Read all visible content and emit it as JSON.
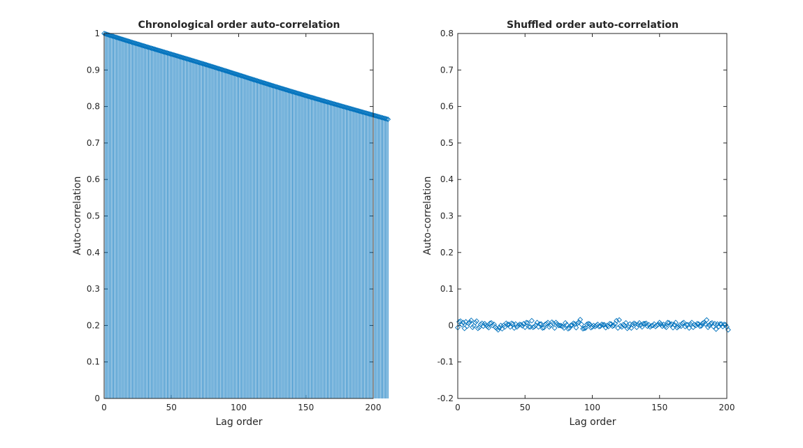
{
  "colors": {
    "background": "#ffffff",
    "axis": "#262626",
    "series": "#0072bd"
  },
  "chart_data": [
    {
      "type": "stem",
      "title": "Chronological order auto-correlation",
      "xlabel": "Lag order",
      "ylabel": "Auto-correlation",
      "xlim": [
        0,
        200
      ],
      "ylim": [
        0,
        1
      ],
      "xticks": [
        0,
        50,
        100,
        150,
        200
      ],
      "xtick_labels": [
        "0",
        "50",
        "100",
        "150",
        "200"
      ],
      "yticks": [
        0,
        0.1,
        0.2,
        0.3,
        0.4,
        0.5,
        0.6,
        0.7,
        0.8,
        0.9,
        1
      ],
      "ytick_labels": [
        "0",
        "0.1",
        "0.2",
        "0.3",
        "0.4",
        "0.5",
        "0.6",
        "0.7",
        "0.8",
        "0.9",
        "1"
      ],
      "marker": "diamond",
      "grid": false,
      "series": [
        {
          "x_start": 0,
          "x_step": 1,
          "values": [
            1.0,
            0.9988,
            0.9976,
            0.9964,
            0.9952,
            0.994,
            0.9929,
            0.9917,
            0.9905,
            0.9894,
            0.9882,
            0.987,
            0.9859,
            0.9847,
            0.9836,
            0.9824,
            0.9813,
            0.9801,
            0.979,
            0.9778,
            0.9767,
            0.9755,
            0.9744,
            0.9733,
            0.9721,
            0.971,
            0.9699,
            0.9687,
            0.9676,
            0.9665,
            0.9654,
            0.9642,
            0.9631,
            0.962,
            0.9609,
            0.9598,
            0.9587,
            0.9576,
            0.9564,
            0.9553,
            0.9542,
            0.9531,
            0.952,
            0.9509,
            0.9498,
            0.9487,
            0.9476,
            0.9465,
            0.9454,
            0.9443,
            0.9432,
            0.9421,
            0.941,
            0.9399,
            0.9388,
            0.9377,
            0.9366,
            0.9354,
            0.9343,
            0.9332,
            0.9321,
            0.931,
            0.9299,
            0.9288,
            0.9277,
            0.9266,
            0.9254,
            0.9243,
            0.9232,
            0.9221,
            0.921,
            0.9198,
            0.9187,
            0.9176,
            0.9165,
            0.9153,
            0.9142,
            0.9131,
            0.9119,
            0.9108,
            0.9096,
            0.9085,
            0.9073,
            0.9062,
            0.905,
            0.9039,
            0.9027,
            0.9016,
            0.9004,
            0.8992,
            0.8981,
            0.8969,
            0.8958,
            0.8946,
            0.8934,
            0.8923,
            0.8911,
            0.8899,
            0.8888,
            0.8876,
            0.8864,
            0.8852,
            0.8841,
            0.8829,
            0.8817,
            0.8806,
            0.8794,
            0.8782,
            0.877,
            0.8759,
            0.8747,
            0.8735,
            0.8724,
            0.8712,
            0.87,
            0.8689,
            0.8677,
            0.8666,
            0.8654,
            0.8642,
            0.8631,
            0.8619,
            0.8608,
            0.8596,
            0.8585,
            0.8573,
            0.8562,
            0.855,
            0.8539,
            0.8528,
            0.8516,
            0.8505,
            0.8494,
            0.8483,
            0.8471,
            0.846,
            0.8449,
            0.8438,
            0.8426,
            0.8415,
            0.8404,
            0.8393,
            0.8382,
            0.8371,
            0.836,
            0.8349,
            0.8338,
            0.8327,
            0.8316,
            0.8305,
            0.8294,
            0.8283,
            0.8272,
            0.8261,
            0.825,
            0.824,
            0.8229,
            0.8218,
            0.8207,
            0.8196,
            0.8186,
            0.8175,
            0.8164,
            0.8154,
            0.8143,
            0.8132,
            0.8122,
            0.8111,
            0.81,
            0.809,
            0.8079,
            0.8068,
            0.8058,
            0.8047,
            0.8037,
            0.8026,
            0.8016,
            0.8005,
            0.7994,
            0.7984,
            0.7973,
            0.7963,
            0.7952,
            0.7942,
            0.7931,
            0.7921,
            0.791,
            0.79,
            0.7889,
            0.7879,
            0.7868,
            0.7858,
            0.7847,
            0.7837,
            0.7826,
            0.7816,
            0.7805,
            0.7795,
            0.7784,
            0.7774,
            0.7763,
            0.7753,
            0.7742,
            0.7732,
            0.7721,
            0.7711,
            0.77,
            0.769,
            0.7679,
            0.7669,
            0.7658,
            0.7648
          ]
        }
      ]
    },
    {
      "type": "scatter",
      "title": "Shuffled order auto-correlation",
      "xlabel": "Lag order",
      "ylabel": "Auto-correlation",
      "xlim": [
        0,
        200
      ],
      "ylim": [
        -0.2,
        0.8
      ],
      "xticks": [
        0,
        50,
        100,
        150,
        200
      ],
      "xtick_labels": [
        "0",
        "50",
        "100",
        "150",
        "200"
      ],
      "yticks": [
        -0.2,
        -0.1,
        0,
        0.1,
        0.2,
        0.3,
        0.4,
        0.5,
        0.6,
        0.7,
        0.8
      ],
      "ytick_labels": [
        "-0.2",
        "-0.1",
        "0",
        "0.1",
        "0.2",
        "0.3",
        "0.4",
        "0.5",
        "0.6",
        "0.7",
        "0.8"
      ],
      "marker": "diamond",
      "grid": false,
      "series": [
        {
          "x_start": 0,
          "x_step": 1,
          "values": [
            -0.006,
            0.01,
            0.012,
            0.002,
            0.008,
            -0.008,
            0.01,
            -0.002,
            0.006,
            0.009,
            0.014,
            -0.005,
            -0.001,
            0.008,
            0.012,
            -0.008,
            -0.005,
            0.003,
            0.006,
            -0.002,
            0.005,
            0.001,
            -0.003,
            -0.006,
            0.006,
            0.007,
            0.0,
            0.003,
            -0.005,
            -0.008,
            -0.012,
            -0.006,
            0.0,
            -0.009,
            0.0,
            -0.004,
            0.006,
            0.003,
            0.003,
            -0.004,
            0.006,
            0.004,
            -0.007,
            0.004,
            -0.004,
            0.0,
            0.003,
            0.002,
            -0.001,
            0.005,
            -0.005,
            0.008,
            0.007,
            -0.004,
            -0.004,
            0.013,
            -0.005,
            -0.003,
            0.001,
            0.008,
            -0.004,
            0.004,
            0.004,
            -0.007,
            -0.006,
            0.003,
            0.005,
            0.008,
            -0.004,
            0.0,
            0.009,
            0.006,
            -0.007,
            0.008,
            0.004,
            0.0,
            0.0,
            -0.001,
            -0.003,
            -0.007,
            0.007,
            0.002,
            -0.009,
            -0.007,
            0.0,
            0.001,
            0.006,
            0.004,
            -0.006,
            0.006,
            0.009,
            0.016,
            0.003,
            -0.009,
            -0.008,
            -0.007,
            0.003,
            0.005,
            0.004,
            -0.006,
            -0.004,
            0.0,
            -0.003,
            0.0,
            0.003,
            -0.003,
            -0.002,
            0.003,
            0.002,
            0.002,
            -0.006,
            0.0,
            -0.003,
            0.005,
            0.004,
            -0.002,
            0.0,
            0.005,
            0.013,
            -0.007,
            0.015,
            -0.001,
            -0.004,
            0.002,
            0.0,
            0.007,
            -0.008,
            -0.004,
            0.004,
            -0.007,
            0.003,
            0.006,
            0.004,
            -0.005,
            0.003,
            0.007,
            0.001,
            -0.004,
            0.005,
            0.005,
            0.006,
            -0.002,
            0.002,
            -0.004,
            -0.001,
            0.0,
            0.004,
            -0.003,
            0.0,
            0.003,
            0.008,
            0.004,
            -0.002,
            0.003,
            -0.002,
            -0.005,
            0.008,
            0.007,
            0.002,
            0.004,
            -0.006,
            0.002,
            0.008,
            -0.006,
            -0.003,
            0.001,
            -0.002,
            0.006,
            0.008,
            -0.003,
            0.002,
            0.002,
            -0.007,
            0.004,
            0.008,
            -0.005,
            0.002,
            0.0,
            0.005,
            0.004,
            -0.002,
            -0.001,
            0.006,
            0.008,
            0.004,
            0.015,
            -0.005,
            0.0,
            0.005,
            0.007,
            -0.003,
            0.005,
            -0.01,
            0.004,
            -0.003,
            0.004,
            0.004,
            -0.003,
            0.003,
            0.002,
            -0.004,
            -0.012
          ]
        }
      ]
    }
  ]
}
